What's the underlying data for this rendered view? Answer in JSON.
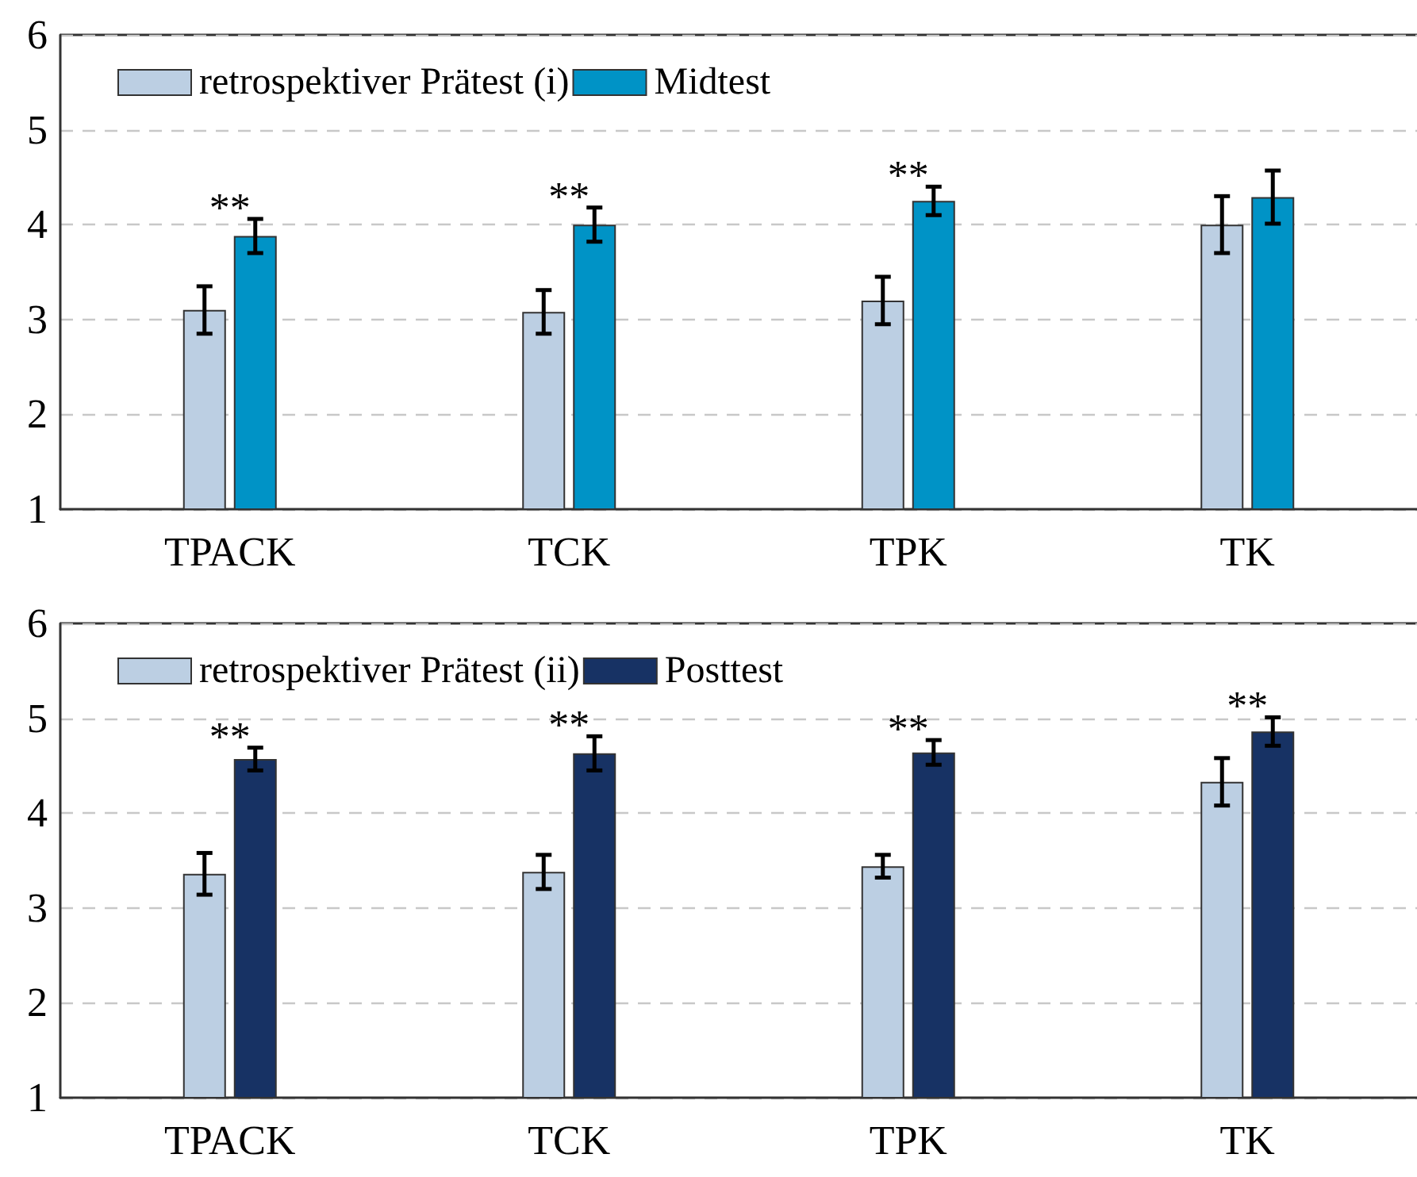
{
  "chart_data": [
    {
      "type": "bar",
      "categories": [
        "TPACK",
        "TCK",
        "TPK",
        "TK"
      ],
      "ylim": [
        1,
        6
      ],
      "yticks": [
        1,
        2,
        3,
        4,
        5,
        6
      ],
      "grid": "y",
      "legend": "top left",
      "series": [
        {
          "name": "retrospektiver Prätest (i)",
          "color": "#bccfe3",
          "values": [
            3.1,
            3.08,
            3.2,
            4.0
          ],
          "errors": [
            0.25,
            0.23,
            0.25,
            0.3
          ]
        },
        {
          "name": "Midtest",
          "color": "#0093c6",
          "values": [
            3.88,
            4.0,
            4.25,
            4.29
          ],
          "errors": [
            0.18,
            0.18,
            0.15,
            0.28
          ]
        }
      ],
      "annotations": [
        "**",
        "**",
        "**"
      ]
    },
    {
      "type": "bar",
      "categories": [
        "TPACK",
        "TCK",
        "TPK",
        "TK"
      ],
      "ylim": [
        1,
        6
      ],
      "yticks": [
        1,
        2,
        3,
        4,
        5,
        6
      ],
      "grid": "y",
      "legend": "top left",
      "series": [
        {
          "name": "retrospektiver Prätest (ii)",
          "color": "#bccfe3",
          "values": [
            3.36,
            3.38,
            3.44,
            4.33
          ],
          "errors": [
            0.22,
            0.18,
            0.12,
            0.25
          ]
        },
        {
          "name": "Posttest",
          "color": "#173264",
          "values": [
            4.57,
            4.63,
            4.64,
            4.86
          ],
          "errors": [
            0.12,
            0.18,
            0.13,
            0.15
          ]
        }
      ],
      "annotations": [
        "**",
        "**",
        "**",
        "**"
      ]
    }
  ]
}
